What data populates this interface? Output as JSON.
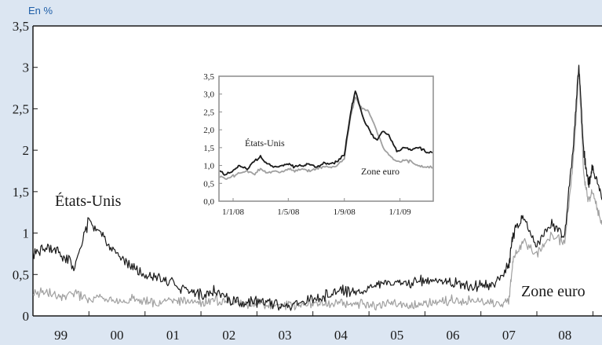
{
  "chart_data": [
    {
      "type": "line",
      "unit_label": "En %",
      "ylim": [
        0,
        3.5
      ],
      "y_ticks": [
        "0",
        "0,5",
        "1",
        "1,5",
        "2",
        "2,5",
        "3",
        "3,5"
      ],
      "y_tick_values": [
        0,
        0.5,
        1,
        1.5,
        2,
        2.5,
        3,
        3.5
      ],
      "x_tick_labels": [
        "99",
        "00",
        "01",
        "02",
        "03",
        "04",
        "05",
        "06",
        "07",
        "08"
      ],
      "xlim": [
        "1999-01",
        "2009-03"
      ],
      "grid": false,
      "series": [
        {
          "name": "États-Unis",
          "color": "#1a1a1a",
          "x": [
            "1999-01",
            "1999-04",
            "1999-07",
            "1999-10",
            "2000-01",
            "2000-04",
            "2000-07",
            "2000-10",
            "2001-01",
            "2001-04",
            "2001-07",
            "2001-10",
            "2002-01",
            "2002-04",
            "2002-07",
            "2002-10",
            "2003-01",
            "2003-04",
            "2003-07",
            "2003-10",
            "2004-01",
            "2004-04",
            "2004-07",
            "2004-10",
            "2005-01",
            "2005-04",
            "2005-07",
            "2005-10",
            "2006-01",
            "2006-04",
            "2006-07",
            "2006-10",
            "2007-01",
            "2007-04",
            "2007-07",
            "2007-08",
            "2007-10",
            "2008-01",
            "2008-04",
            "2008-07",
            "2008-09",
            "2008-10",
            "2008-11",
            "2008-12",
            "2009-01",
            "2009-03"
          ],
          "y": [
            0.72,
            0.85,
            0.75,
            0.6,
            1.15,
            0.95,
            0.75,
            0.6,
            0.5,
            0.45,
            0.4,
            0.3,
            0.25,
            0.3,
            0.2,
            0.15,
            0.18,
            0.15,
            0.12,
            0.15,
            0.2,
            0.25,
            0.3,
            0.28,
            0.35,
            0.4,
            0.42,
            0.38,
            0.45,
            0.42,
            0.4,
            0.38,
            0.35,
            0.4,
            0.6,
            1.0,
            1.2,
            0.85,
            1.1,
            1.0,
            2.2,
            3.05,
            2.0,
            1.6,
            1.8,
            1.4
          ]
        },
        {
          "name": "Zone euro",
          "color": "#a0a0a0",
          "x": [
            "1999-01",
            "1999-04",
            "1999-07",
            "1999-10",
            "2000-01",
            "2000-04",
            "2000-07",
            "2000-10",
            "2001-01",
            "2001-04",
            "2001-07",
            "2001-10",
            "2002-01",
            "2002-04",
            "2002-07",
            "2002-10",
            "2003-01",
            "2003-04",
            "2003-07",
            "2003-10",
            "2004-01",
            "2004-04",
            "2004-07",
            "2004-10",
            "2005-01",
            "2005-04",
            "2005-07",
            "2005-10",
            "2006-01",
            "2006-04",
            "2006-07",
            "2006-10",
            "2007-01",
            "2007-04",
            "2007-07",
            "2007-08",
            "2007-10",
            "2008-01",
            "2008-04",
            "2008-07",
            "2008-09",
            "2008-10",
            "2008-11",
            "2008-12",
            "2009-01",
            "2009-03"
          ],
          "y": [
            0.25,
            0.3,
            0.22,
            0.28,
            0.2,
            0.22,
            0.18,
            0.2,
            0.18,
            0.15,
            0.2,
            0.17,
            0.15,
            0.18,
            0.16,
            0.15,
            0.15,
            0.12,
            0.14,
            0.13,
            0.15,
            0.14,
            0.16,
            0.15,
            0.12,
            0.13,
            0.14,
            0.12,
            0.15,
            0.16,
            0.2,
            0.18,
            0.17,
            0.15,
            0.16,
            0.7,
            0.9,
            0.75,
            0.95,
            0.9,
            2.0,
            3.0,
            1.7,
            1.4,
            1.5,
            1.1
          ]
        }
      ],
      "annotations": [
        "États-Unis",
        "Zone euro"
      ]
    },
    {
      "type": "line",
      "ylim": [
        0,
        3.5
      ],
      "y_ticks": [
        "0,0",
        "0,5",
        "1,0",
        "1,5",
        "2,0",
        "2,5",
        "3,0",
        "3,5"
      ],
      "y_tick_values": [
        0,
        0.5,
        1,
        1.5,
        2,
        2.5,
        3,
        3.5
      ],
      "x_tick_labels": [
        "1/1/08",
        "1/5/08",
        "1/9/08",
        "1/1/09"
      ],
      "x_tick_values": [
        "2008-01-01",
        "2008-05-01",
        "2008-09-01",
        "2009-01-01"
      ],
      "xlim": [
        "2007-12-01",
        "2009-03-15"
      ],
      "grid": false,
      "series": [
        {
          "name": "États-Unis",
          "color": "#1a1a1a",
          "x": [
            "2007-12-01",
            "2007-12-15",
            "2008-01-01",
            "2008-01-15",
            "2008-02-01",
            "2008-02-15",
            "2008-03-01",
            "2008-03-15",
            "2008-04-01",
            "2008-04-15",
            "2008-05-01",
            "2008-05-15",
            "2008-06-01",
            "2008-06-15",
            "2008-07-01",
            "2008-07-15",
            "2008-08-01",
            "2008-08-15",
            "2008-09-01",
            "2008-09-15",
            "2008-09-25",
            "2008-10-10",
            "2008-10-25",
            "2008-11-10",
            "2008-11-25",
            "2008-12-10",
            "2008-12-25",
            "2009-01-10",
            "2009-01-25",
            "2009-02-10",
            "2009-02-25",
            "2009-03-15"
          ],
          "y": [
            0.85,
            0.75,
            0.85,
            1.0,
            0.9,
            1.1,
            1.25,
            1.05,
            0.95,
            1.0,
            1.05,
            0.95,
            1.0,
            1.05,
            0.95,
            1.05,
            1.05,
            1.1,
            1.3,
            2.5,
            3.1,
            2.4,
            2.0,
            1.7,
            1.95,
            1.8,
            1.4,
            1.5,
            1.45,
            1.5,
            1.4,
            1.35
          ]
        },
        {
          "name": "Zone euro",
          "color": "#a0a0a0",
          "x": [
            "2007-12-01",
            "2007-12-15",
            "2008-01-01",
            "2008-01-15",
            "2008-02-01",
            "2008-02-15",
            "2008-03-01",
            "2008-03-15",
            "2008-04-01",
            "2008-04-15",
            "2008-05-01",
            "2008-05-15",
            "2008-06-01",
            "2008-06-15",
            "2008-07-01",
            "2008-07-15",
            "2008-08-01",
            "2008-08-15",
            "2008-09-01",
            "2008-09-15",
            "2008-09-25",
            "2008-10-10",
            "2008-10-25",
            "2008-11-10",
            "2008-11-25",
            "2008-12-10",
            "2008-12-25",
            "2009-01-10",
            "2009-01-25",
            "2009-02-10",
            "2009-02-25",
            "2009-03-15"
          ],
          "y": [
            0.7,
            0.65,
            0.7,
            0.8,
            0.85,
            0.75,
            0.9,
            0.8,
            0.85,
            0.8,
            0.9,
            0.85,
            0.9,
            0.85,
            0.9,
            0.95,
            0.95,
            1.0,
            1.2,
            2.4,
            2.9,
            2.6,
            2.5,
            2.0,
            1.5,
            1.25,
            1.1,
            1.15,
            1.1,
            1.0,
            0.95,
            0.95
          ]
        }
      ],
      "annotations": [
        "États-Unis",
        "Zone euro"
      ]
    }
  ]
}
